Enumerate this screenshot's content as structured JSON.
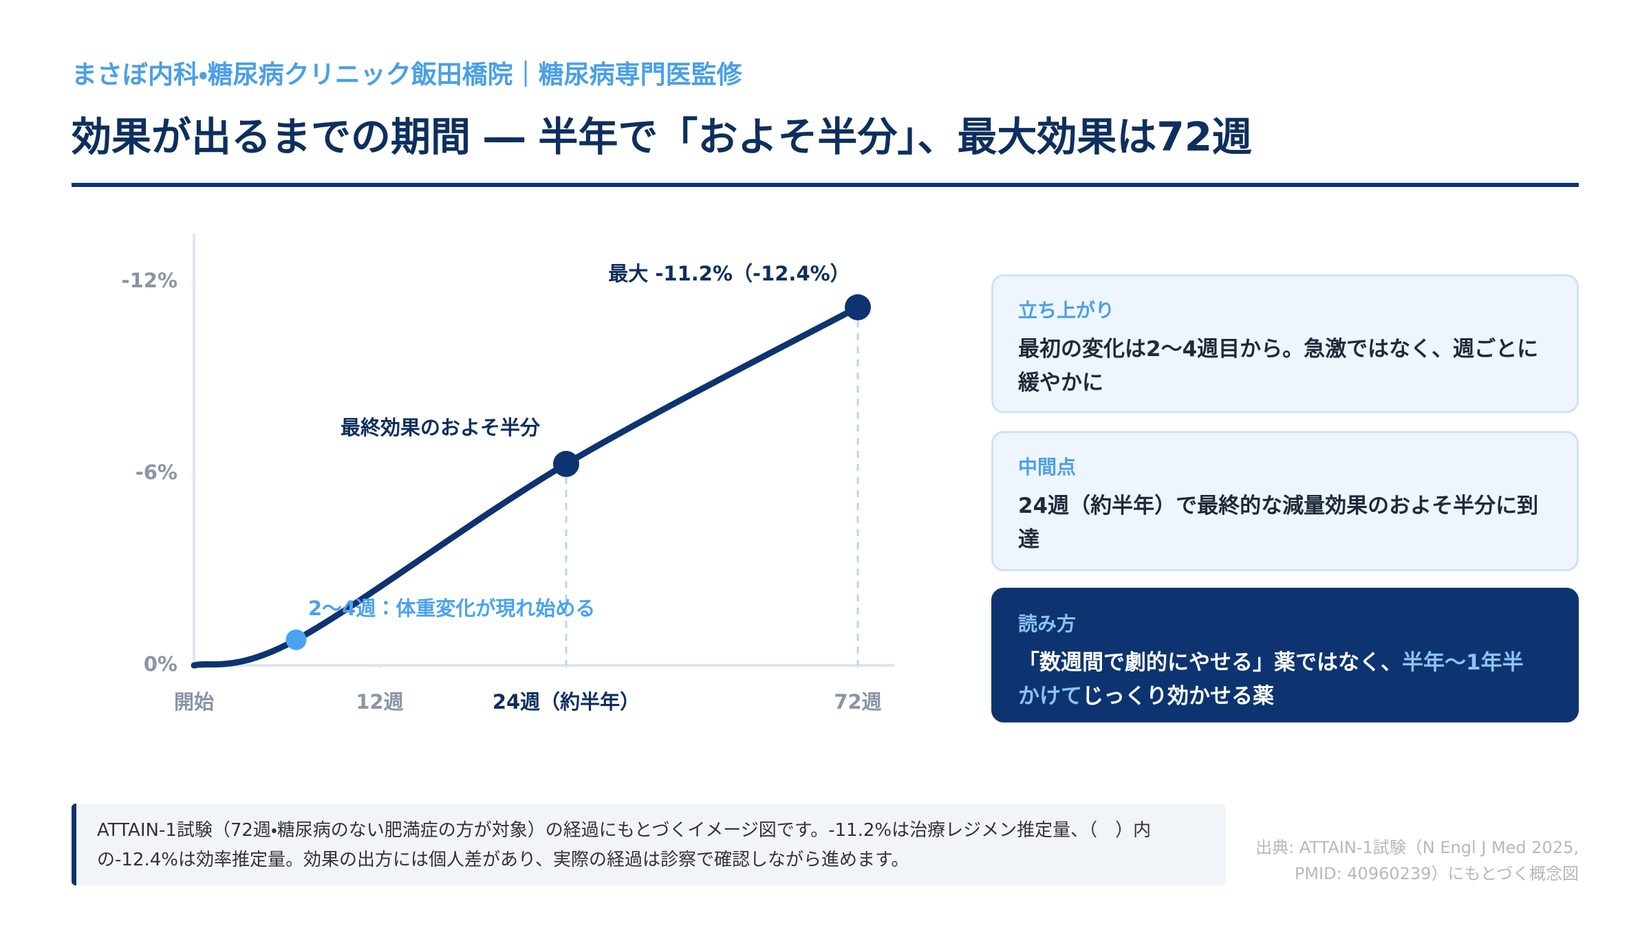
{
  "header": {
    "subtitle": "まさぼ内科・糖尿病クリニック飯田橋院｜糖尿病専門医監修",
    "title": "効果が出るまでの期間 ― 半年で「およそ半分」、最大効果は72週"
  },
  "chart_data": {
    "type": "line",
    "x": [
      0,
      6.6,
      24,
      72
    ],
    "series": [
      {
        "color": "#0d3470",
        "values": [
          0,
          -0.8,
          -6.3,
          -11.2
        ],
        "marker_colors": [
          null,
          "#4aa3f0",
          "#0d3470",
          "#0d3470"
        ]
      }
    ],
    "xticks": [
      {
        "value": 0,
        "label": "開始"
      },
      {
        "value": 12,
        "label": "12週"
      },
      {
        "value": 24,
        "label": "24週（約半年）"
      },
      {
        "value": 72,
        "label": "72週"
      }
    ],
    "ylim": [
      0,
      -13.5
    ],
    "yticks": [
      {
        "value": -12,
        "label": "-12%"
      },
      {
        "value": -6,
        "label": "-6%"
      },
      {
        "value": 0,
        "label": "0%"
      }
    ],
    "annotations": [
      "最大 -11.2%（-12.4%）",
      "最終効果のおよそ半分",
      "2〜4週：体重変化が現れ始める"
    ]
  },
  "cards": [
    {
      "label": "立ち上がり",
      "body": "最初の変化は2〜4週目から。急激ではなく、週ごとに緩やかに"
    },
    {
      "label": "中間点",
      "body": "24週（約半年）で最終的な減量効果のおよそ半分に到達"
    },
    {
      "label": "読み方",
      "body": [
        "「数週間で劇的にやせる」薬ではなく、",
        "半年〜1年半かけて",
        "じっくり効かせる薬"
      ]
    }
  ],
  "footnote": "ATTAIN-1試験（72週・糖尿病のない肥満症の方が対象）の経過にもとづくイメージ図です。-11.2%は治療レジメン推定量、（　）内の-12.4%は効率推定量。効果の出方には個人差があり、実際の経過は診察で確認しながら進めます。",
  "source": [
    "出典: ATTAIN-1試験（N Engl J Med 2025,",
    "PMID: 40960239）にもとづく概念図"
  ]
}
